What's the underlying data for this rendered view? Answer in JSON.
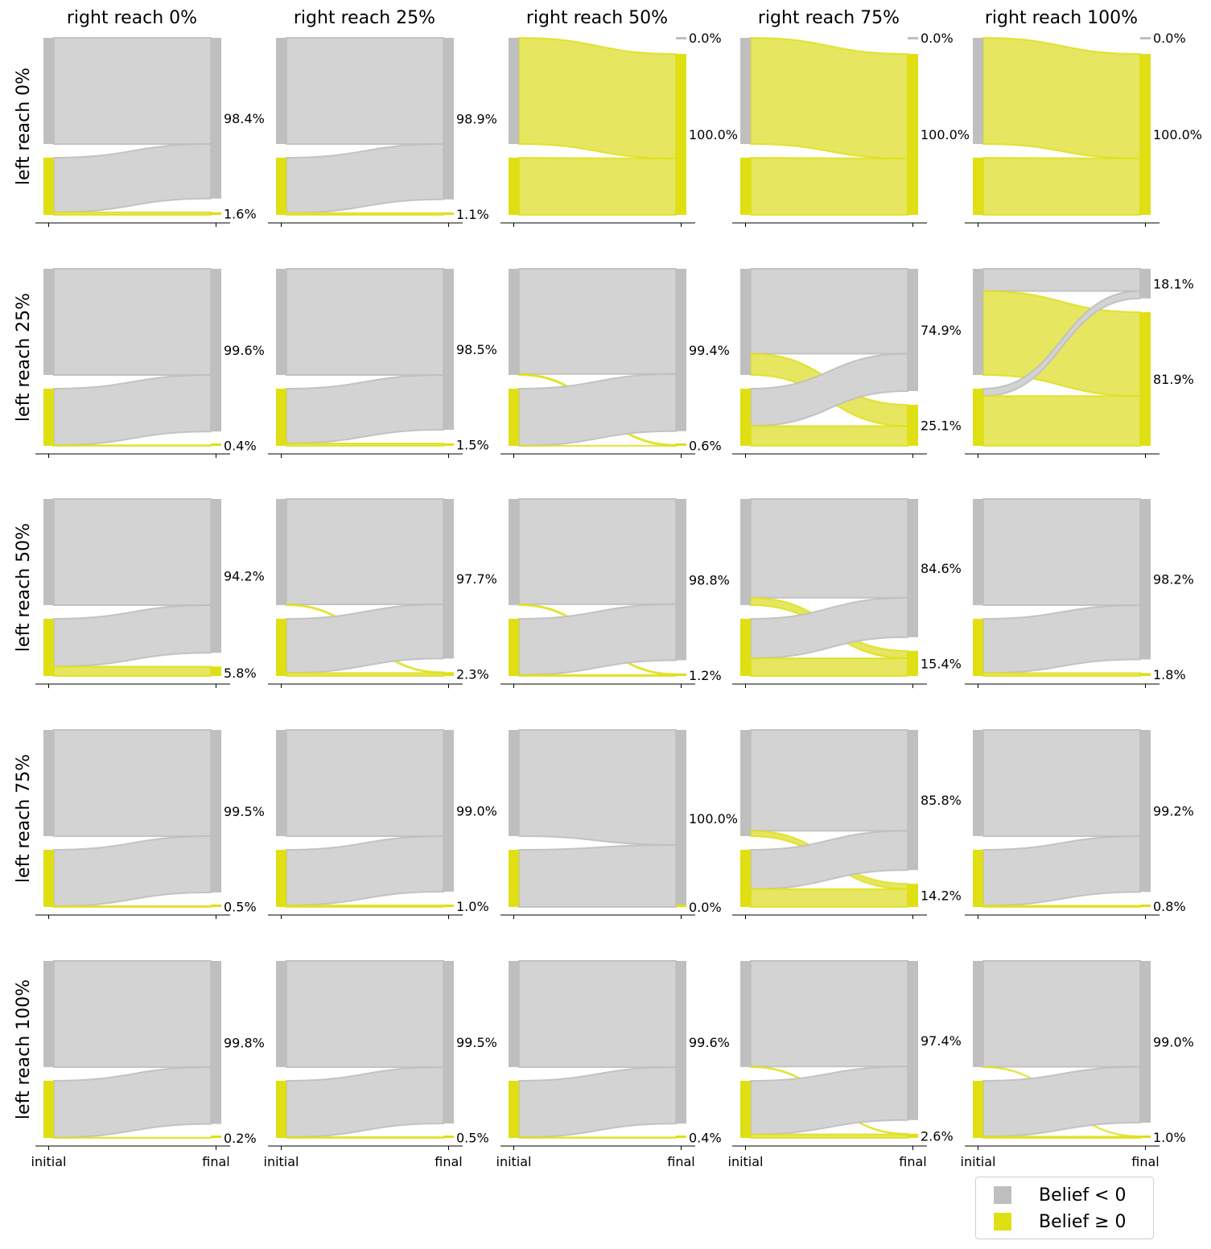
{
  "colors": {
    "neg": "#bfbfbf",
    "pos": "#dfdf14",
    "neg_flow": "#d3d3d3",
    "pos_flow": "#e6e660"
  },
  "legend": {
    "items": [
      {
        "label": "Belief < 0",
        "key": "neg"
      },
      {
        "label": "Belief ≥ 0",
        "key": "pos"
      }
    ]
  },
  "chart_data": {
    "type": "sankey",
    "col_titles": [
      "right reach 0%",
      "right reach 25%",
      "right reach 50%",
      "right reach 75%",
      "right reach 100%"
    ],
    "row_titles": [
      "left reach 0%",
      "left reach 25%",
      "left reach 50%",
      "left reach 75%",
      "left reach 100%"
    ],
    "x_ticks": [
      "initial",
      "final"
    ],
    "initial_share": {
      "neg": 65,
      "pos": 35
    },
    "panels": [
      [
        {
          "neg_label": "98.4%",
          "pos_label": "1.6%",
          "neg_to_neg": 100,
          "pos_to_neg": 95.4
        },
        {
          "neg_label": "98.9%",
          "pos_label": "1.1%",
          "neg_to_neg": 100,
          "pos_to_neg": 96.9
        },
        {
          "neg_label": "",
          "pos_label": "100.0%",
          "zero_label": "0.0%",
          "neg_to_neg": 0,
          "pos_to_neg": 0
        },
        {
          "neg_label": "",
          "pos_label": "100.0%",
          "zero_label": "0.0%",
          "neg_to_neg": 0,
          "pos_to_neg": 0
        },
        {
          "neg_label": "",
          "pos_label": "100.0%",
          "zero_label": "0.0%",
          "neg_to_neg": 0,
          "pos_to_neg": 0
        }
      ],
      [
        {
          "neg_label": "99.6%",
          "pos_label": "0.4%",
          "neg_to_neg": 100,
          "pos_to_neg": 98.9
        },
        {
          "neg_label": "98.5%",
          "pos_label": "1.5%",
          "neg_to_neg": 100,
          "pos_to_neg": 95.7
        },
        {
          "neg_label": "99.4%",
          "pos_label": "0.6%",
          "neg_to_neg": 99.1,
          "pos_to_neg": 99.9
        },
        {
          "neg_label": "74.9%",
          "pos_label": "25.1%",
          "neg_to_neg": 80,
          "pos_to_neg": 65.3
        },
        {
          "neg_label": "18.1%",
          "pos_label": "81.9%",
          "neg_to_neg": 20.9,
          "pos_to_neg": 13
        }
      ],
      [
        {
          "neg_label": "94.2%",
          "pos_label": "5.8%",
          "neg_to_neg": 100,
          "pos_to_neg": 83.4
        },
        {
          "neg_label": "97.7%",
          "pos_label": "2.3%",
          "neg_to_neg": 99.3,
          "pos_to_neg": 94.7
        },
        {
          "neg_label": "98.8%",
          "pos_label": "1.2%",
          "neg_to_neg": 99.2,
          "pos_to_neg": 98
        },
        {
          "neg_label": "84.6%",
          "pos_label": "15.4%",
          "neg_to_neg": 93,
          "pos_to_neg": 69
        },
        {
          "neg_label": "98.2%",
          "pos_label": "1.8%",
          "neg_to_neg": 100,
          "pos_to_neg": 94.9
        }
      ],
      [
        {
          "neg_label": "99.5%",
          "pos_label": "0.5%",
          "neg_to_neg": 100,
          "pos_to_neg": 98.6
        },
        {
          "neg_label": "99.0%",
          "pos_label": "1.0%",
          "neg_to_neg": 100,
          "pos_to_neg": 97.1
        },
        {
          "neg_label": "100.0%",
          "pos_label": "0.0%",
          "neg_to_neg": 100,
          "pos_to_neg": 100
        },
        {
          "neg_label": "85.8%",
          "pos_label": "14.2%",
          "neg_to_neg": 95,
          "pos_to_neg": 68.7
        },
        {
          "neg_label": "99.2%",
          "pos_label": "0.8%",
          "neg_to_neg": 100,
          "pos_to_neg": 97.7
        }
      ],
      [
        {
          "neg_label": "99.8%",
          "pos_label": "0.2%",
          "neg_to_neg": 100,
          "pos_to_neg": 99.4
        },
        {
          "neg_label": "99.5%",
          "pos_label": "0.5%",
          "neg_to_neg": 100,
          "pos_to_neg": 98.6
        },
        {
          "neg_label": "99.6%",
          "pos_label": "0.4%",
          "neg_to_neg": 100,
          "pos_to_neg": 98.9
        },
        {
          "neg_label": "97.4%",
          "pos_label": "2.6%",
          "neg_to_neg": 99.5,
          "pos_to_neg": 93.6
        },
        {
          "neg_label": "99.0%",
          "pos_label": "1.0%",
          "neg_to_neg": 99.8,
          "pos_to_neg": 97.6
        }
      ]
    ]
  }
}
